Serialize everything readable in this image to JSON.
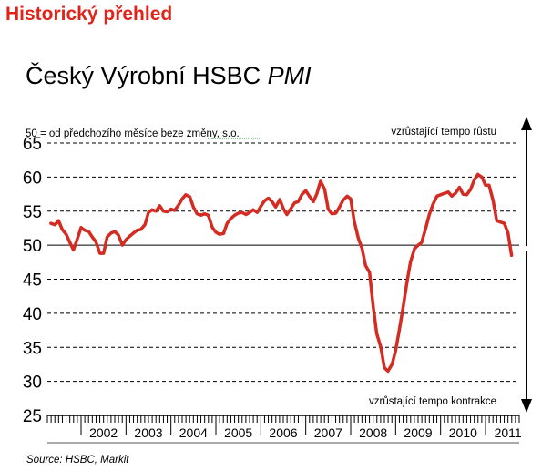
{
  "header": {
    "title": "Historický přehled"
  },
  "chart_title": {
    "main": "Český Výrobní HSBC ",
    "italic": "PMI"
  },
  "source": "Source: HSBC, Markit",
  "chart_data": {
    "type": "line",
    "title": "Český Výrobní HSBC PMI",
    "note": "50 = od předchozího měsíce beze změny, s.o.",
    "annotations": {
      "upper": "vzrůstající tempo růstu",
      "lower": "vzrůstající tempo kontrakce"
    },
    "xlabel": "",
    "ylabel": "",
    "ylim": [
      25,
      65
    ],
    "xlim": [
      2001.25,
      2011.75
    ],
    "yticks": [
      25,
      30,
      35,
      40,
      45,
      50,
      55,
      60,
      65
    ],
    "year_labels": [
      "2002",
      "2003",
      "2004",
      "2005",
      "2006",
      "2007",
      "2008",
      "2009",
      "2010",
      "2011"
    ],
    "reference_line": 50,
    "grid": "dashed horizontal",
    "colors": {
      "line": "#d42b22",
      "title": "#e2231a",
      "grid": "#000000"
    },
    "series": [
      {
        "x": [
          2001.33,
          2001.42,
          2001.5,
          2001.58,
          2001.67,
          2001.75,
          2001.83,
          2001.92,
          2002.0,
          2002.08,
          2002.17,
          2002.25,
          2002.33,
          2002.42,
          2002.5,
          2002.58,
          2002.67,
          2002.75,
          2002.83,
          2002.92,
          2003.0,
          2003.08,
          2003.17,
          2003.25,
          2003.33,
          2003.42,
          2003.5,
          2003.58,
          2003.67,
          2003.75,
          2003.83,
          2003.92,
          2004.0,
          2004.08,
          2004.17,
          2004.25,
          2004.33,
          2004.42,
          2004.5,
          2004.58,
          2004.67,
          2004.75,
          2004.83,
          2004.92,
          2005.0,
          2005.08,
          2005.17,
          2005.25,
          2005.33,
          2005.42,
          2005.5,
          2005.58,
          2005.67,
          2005.75,
          2005.83,
          2005.92,
          2006.0,
          2006.08,
          2006.17,
          2006.25,
          2006.33,
          2006.42,
          2006.5,
          2006.58,
          2006.67,
          2006.75,
          2006.83,
          2006.92,
          2007.0,
          2007.08,
          2007.17,
          2007.25,
          2007.33,
          2007.42,
          2007.5,
          2007.58,
          2007.67,
          2007.75,
          2007.83,
          2007.92,
          2008.0,
          2008.08,
          2008.17,
          2008.25,
          2008.33,
          2008.42,
          2008.5,
          2008.58,
          2008.67,
          2008.75,
          2008.83,
          2008.92,
          2009.0,
          2009.08,
          2009.17,
          2009.25,
          2009.33,
          2009.42,
          2009.5,
          2009.58,
          2009.67,
          2009.75,
          2009.83,
          2009.92,
          2010.0,
          2010.08,
          2010.17,
          2010.25,
          2010.33,
          2010.42,
          2010.5,
          2010.58,
          2010.67,
          2010.75,
          2010.83,
          2010.92,
          2011.0,
          2011.08,
          2011.17,
          2011.25,
          2011.33,
          2011.42,
          2011.5,
          2011.58
        ],
        "y": [
          53.2,
          53.0,
          53.6,
          52.3,
          51.6,
          50.4,
          49.3,
          51.0,
          52.6,
          52.2,
          52.0,
          51.2,
          50.5,
          48.8,
          48.8,
          51.2,
          51.8,
          52.0,
          51.5,
          50.0,
          50.8,
          51.3,
          51.8,
          52.2,
          52.3,
          53.0,
          54.8,
          55.2,
          55.0,
          55.8,
          55.0,
          54.9,
          55.3,
          55.1,
          55.9,
          56.8,
          57.4,
          57.1,
          55.6,
          54.6,
          54.4,
          54.6,
          54.4,
          52.6,
          51.9,
          51.6,
          51.7,
          53.2,
          53.9,
          54.4,
          54.7,
          54.8,
          54.5,
          54.8,
          55.2,
          54.8,
          55.7,
          56.5,
          56.9,
          56.4,
          55.6,
          56.7,
          55.4,
          54.5,
          55.4,
          56.2,
          56.4,
          57.5,
          58.0,
          57.2,
          56.4,
          57.6,
          59.4,
          58.2,
          55.3,
          54.6,
          54.7,
          55.6,
          56.6,
          57.2,
          56.8,
          53.5,
          51.0,
          49.6,
          47.0,
          46.0,
          41.0,
          37.0,
          35.0,
          32.0,
          31.5,
          32.5,
          34.5,
          37.5,
          41.0,
          44.5,
          47.5,
          49.5,
          50.0,
          50.4,
          52.5,
          54.5,
          56.0,
          57.2,
          57.4,
          57.6,
          57.8,
          57.2,
          57.6,
          58.5,
          57.5,
          57.4,
          58.2,
          59.6,
          60.4,
          60.0,
          58.8,
          58.8,
          56.5,
          53.6,
          53.4,
          53.2,
          51.8,
          48.5
        ]
      }
    ]
  }
}
